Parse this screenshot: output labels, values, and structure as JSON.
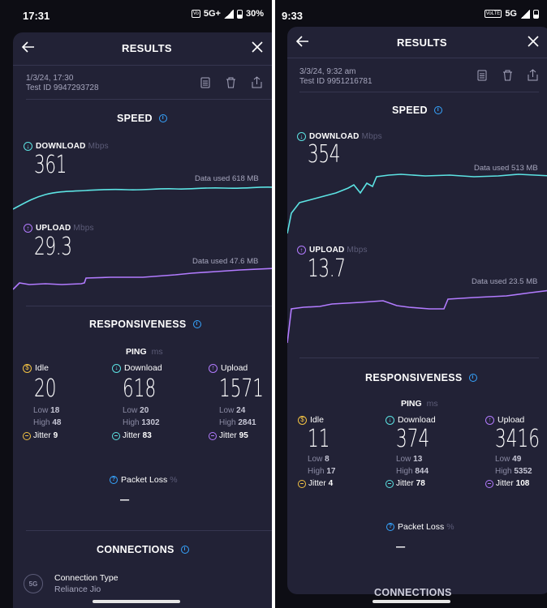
{
  "left": {
    "status": {
      "time": "17:31",
      "network": "5G+",
      "battery": "30%"
    },
    "header": {
      "title": "RESULTS"
    },
    "meta": {
      "date": "1/3/24, 17:30",
      "test_id": "Test ID 9947293728"
    },
    "speed": {
      "title": "SPEED",
      "download": {
        "label": "DOWNLOAD",
        "unit": "Mbps",
        "value": "361",
        "data_used": "Data used 618 MB"
      },
      "upload": {
        "label": "UPLOAD",
        "unit": "Mbps",
        "value": "29.3",
        "data_used": "Data used 47.6 MB"
      }
    },
    "responsiveness": {
      "title": "RESPONSIVENESS",
      "ping_label": "PING",
      "ping_unit": "ms",
      "idle": {
        "label": "Idle",
        "value": "20",
        "low": "18",
        "high": "48",
        "jitter": "9"
      },
      "download": {
        "label": "Download",
        "value": "618",
        "low": "20",
        "high": "1302",
        "jitter": "83"
      },
      "upload": {
        "label": "Upload",
        "value": "1571",
        "low": "24",
        "high": "2841",
        "jitter": "95"
      },
      "packet_loss_label": "Packet Loss",
      "packet_loss_unit": "%",
      "packet_loss_value": "–"
    },
    "connections": {
      "title": "CONNECTIONS",
      "type_label": "Connection Type",
      "type_value": "Reliance Jio",
      "icon_text": "5G"
    }
  },
  "right": {
    "status": {
      "time": "9:33",
      "network": "5G",
      "badge": "VoLTE"
    },
    "header": {
      "title": "RESULTS"
    },
    "meta": {
      "date": "3/3/24, 9:32 am",
      "test_id": "Test ID 9951216781"
    },
    "speed": {
      "title": "SPEED",
      "download": {
        "label": "DOWNLOAD",
        "unit": "Mbps",
        "value": "354",
        "data_used": "Data used 513 MB"
      },
      "upload": {
        "label": "UPLOAD",
        "unit": "Mbps",
        "value": "13.7",
        "data_used": "Data used 23.5 MB"
      }
    },
    "responsiveness": {
      "title": "RESPONSIVENESS",
      "ping_label": "PING",
      "ping_unit": "ms",
      "idle": {
        "label": "Idle",
        "value": "11",
        "low": "8",
        "high": "17",
        "jitter": "4"
      },
      "download": {
        "label": "Download",
        "value": "374",
        "low": "13",
        "high": "844",
        "jitter": "78"
      },
      "upload": {
        "label": "Upload",
        "value": "3416",
        "low": "49",
        "high": "5352",
        "jitter": "108"
      },
      "packet_loss_label": "Packet Loss",
      "packet_loss_unit": "%",
      "packet_loss_value": "–"
    },
    "connections": {
      "title": "CONNECTIONS"
    }
  },
  "common": {
    "low_label": "Low",
    "high_label": "High",
    "jitter_label": "Jitter"
  },
  "colors": {
    "download": "#5ce3e3",
    "upload": "#b27bff",
    "idle": "#f3c243",
    "accent": "#36a5ff",
    "card": "#222236"
  },
  "icons": [
    "back-arrow-icon",
    "close-icon",
    "document-icon",
    "trash-icon",
    "share-icon",
    "info-icon",
    "download-arrow-icon",
    "upload-arrow-icon",
    "idle-clock-icon",
    "jitter-icon"
  ]
}
